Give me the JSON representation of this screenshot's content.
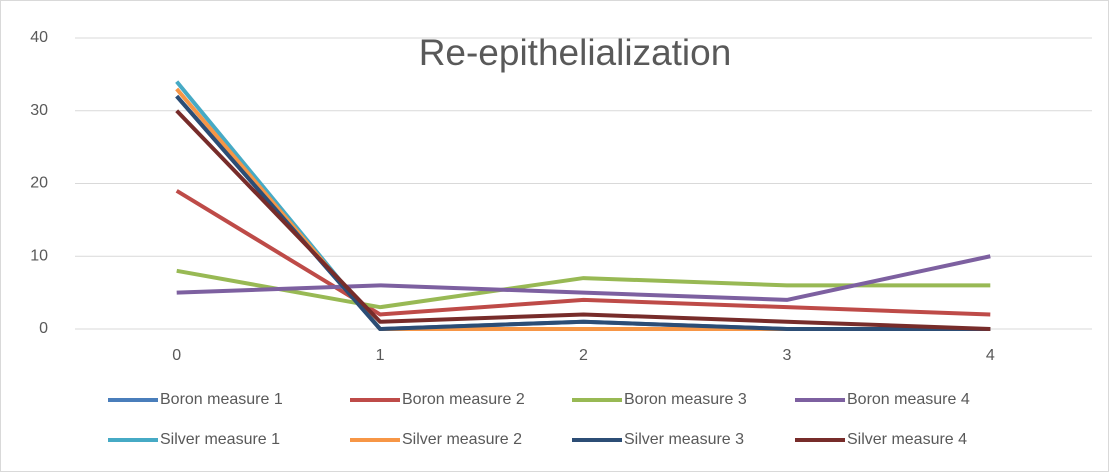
{
  "chart_data": {
    "type": "line",
    "title": "Re-epithelialization",
    "categories": [
      "0",
      "1",
      "2",
      "3",
      "4"
    ],
    "series": [
      {
        "name": "Boron measure 1",
        "color": "#4a7ebb",
        "values": [
          32,
          0,
          1,
          0,
          0
        ]
      },
      {
        "name": "Boron measure 2",
        "color": "#be4b48",
        "values": [
          19,
          2,
          4,
          3,
          2
        ]
      },
      {
        "name": "Boron measure 3",
        "color": "#98b954",
        "values": [
          8,
          3,
          7,
          6,
          6
        ]
      },
      {
        "name": "Boron measure 4",
        "color": "#7d60a0",
        "values": [
          5,
          6,
          5,
          4,
          10
        ]
      },
      {
        "name": "Silver measure 1",
        "color": "#46aac5",
        "values": [
          34,
          0,
          0,
          0,
          0
        ]
      },
      {
        "name": "Silver measure 2",
        "color": "#f79646",
        "values": [
          33,
          0,
          0,
          0,
          0
        ]
      },
      {
        "name": "Silver measure 3",
        "color": "#2c4d75",
        "values": [
          32,
          0,
          1,
          0,
          0
        ]
      },
      {
        "name": "Silver measure 4",
        "color": "#772c2a",
        "values": [
          30,
          1,
          2,
          1,
          0
        ]
      }
    ],
    "ylim": [
      0,
      40
    ],
    "yticks": [
      0,
      10,
      20,
      30,
      40
    ],
    "grid": true,
    "legend": "bottom"
  }
}
